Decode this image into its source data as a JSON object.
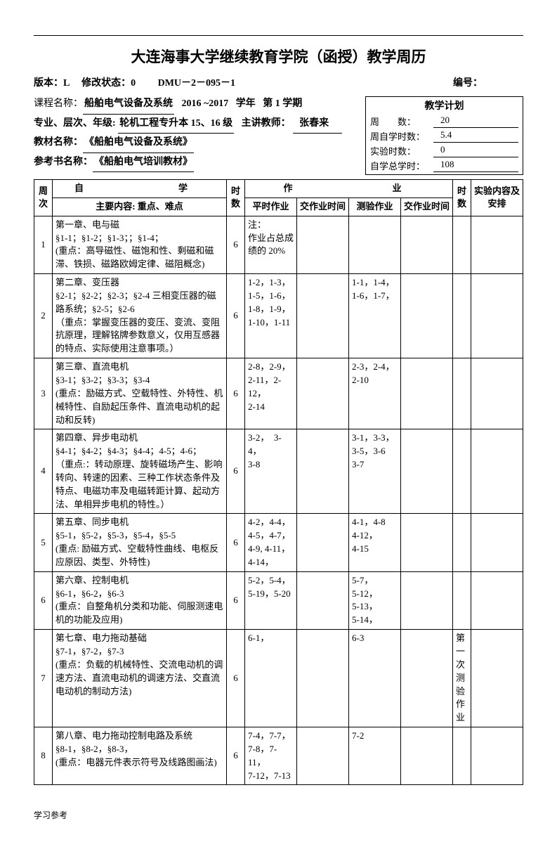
{
  "title": "大连海事大学继续教育学院（函授）教学周历",
  "version_line": {
    "version_label": "版本：",
    "version": "L",
    "rev_label": "修改状态：",
    "rev": "0",
    "code": "DMU－2－095－1",
    "serial_label": "编号："
  },
  "course": {
    "course_label": "课程名称：",
    "course_name": "船舶电气设备及系统",
    "year": "2016 ~2017",
    "year_label": "学年",
    "term_label": "第",
    "term": "1",
    "term_suffix": "学期",
    "major_label": "专业、层次、年级:",
    "major": "轮机工程专升本 15、16 级",
    "teacher_label": "主讲教师：",
    "teacher": "张春来",
    "textbook_label": "教材名称：",
    "textbook": "《船舶电气设备及系统》",
    "ref_label": "参考书名称：",
    "ref": "《船舶电气培训教材》"
  },
  "plan": {
    "title": "教学计划",
    "rows": [
      {
        "label": "周　　数：",
        "value": "20"
      },
      {
        "label": "周自学时数：",
        "value": "5.4"
      },
      {
        "label": "实验时数：",
        "value": "0"
      },
      {
        "label": "自学总学时：",
        "value": "108"
      }
    ]
  },
  "table": {
    "head": {
      "week": "周次",
      "study_top": "自　　　学",
      "study_sub": "主要内容: 重点、难点",
      "hours": "时数",
      "homework_top": "作　　　　业",
      "hw1": "平时作业",
      "hw2": "交作业时间",
      "hw3": "测验作业",
      "hw4": "交作业时间",
      "hours2": "时数",
      "exp": "实验内容及安排"
    },
    "rows": [
      {
        "week": "1",
        "study": "第一章、电与磁\n§1-1；§1-2；§1-3；；§1-4；\n(重点：高导磁性、磁饱和性、剩磁和磁滞、铁损、磁路欧姆定律、磁阻概念)",
        "hours": "6",
        "hw1": "注：\n作业占总成绩的 20%",
        "hw2": "",
        "hw3": "",
        "hw4": "",
        "hours2": "",
        "exp": ""
      },
      {
        "week": "2",
        "study": "第二章、变压器\n§2-1；§2-2；§2-3；§2-4 三相变压器的磁路系统；§2-5；§2-6\n（重点：掌握变压器的变压、变流、变阻抗原理，理解铭牌参数意义，仅用互感器的特点、实际使用注意事项。）",
        "hours": "6",
        "hw1": "1-2，1-3，\n1-5，1-6，\n1-8，1-9，\n1-10，1-11",
        "hw2": "",
        "hw3": "1-1，1-4，\n1-6，1-7，",
        "hw4": "",
        "hours2": "",
        "exp": ""
      },
      {
        "week": "3",
        "study": "第三章、直流电机\n§3-1；§3-2；§3-3；§3-4\n(重点：励磁方式、空载特性、外特性、机械特性、自励起压条件、直流电动机的起动和反转)",
        "hours": "6",
        "hw1": "2-8，2-9，\n2-11，2-12，\n2-14",
        "hw2": "",
        "hw3": "2-3，2-4，\n2-10",
        "hw4": "",
        "hours2": "",
        "exp": ""
      },
      {
        "week": "4",
        "study": "第四章、异步电动机\n§4-1；§4-2；§4-3；§4-4；4-5；4-6；\n（重点:：转动原理、旋转磁场产生、影响转向、转速的因素、三种工作状态条件及特点、电磁功率及电磁转距计算、起动方法、单相异步电机的特性。）",
        "hours": "6",
        "hw1": "3-2，　3-4，\n3-8",
        "hw2": "",
        "hw3": "3-1，3-3，\n3-5，3-6\n3-7",
        "hw4": "",
        "hours2": "",
        "exp": ""
      },
      {
        "week": "5",
        "study": "第五章、同步电机\n§5-1，§5-2，§5-3，§5-4，§5-5\n(重点: 励磁方式、空载特性曲线、电枢反应原因、类型、外特性)",
        "hours": "6",
        "hw1": "4-2，4-4，\n4-5，4-7，\n4-9, 4-11，\n4-14，",
        "hw2": "",
        "hw3": "4-1，4-8\n4-12，\n4-15",
        "hw4": "",
        "hours2": "",
        "exp": ""
      },
      {
        "week": "6",
        "study": "第六章、控制电机\n§6-1，§6-2，§6-3\n(重点：自整角机分类和功能、伺服测速电机的功能及应用)",
        "hours": "6",
        "hw1": "5-2，5-4，\n5-19，5-20",
        "hw2": "",
        "hw3": "5-7，\n5-12，\n5-13，\n5-14，",
        "hw4": "",
        "hours2": "",
        "exp": ""
      },
      {
        "week": "7",
        "study": "第七章、电力拖动基础\n§7-1，§7-2，§7-3\n(重点：负载的机械特性、交流电动机的调速方法、直流电动机的调速方法、交直流电动机的制动方法)",
        "hours": "6",
        "hw1": "6-1，",
        "hw2": "",
        "hw3": "6-3",
        "hw4": "",
        "hours2": "第一次测验作业",
        "exp": ""
      },
      {
        "week": "8",
        "study": "第八章、电力拖动控制电路及系统\n§8-1，§8-2，§8-3，\n(重点：电器元件表示符号及线路图画法)",
        "hours": "6",
        "hw1": "7-4，7-7，\n7-8，7-11，\n7-12，7-13",
        "hw2": "",
        "hw3": "7-2",
        "hw4": "",
        "hours2": "",
        "exp": ""
      }
    ]
  },
  "footer": "学习参考"
}
